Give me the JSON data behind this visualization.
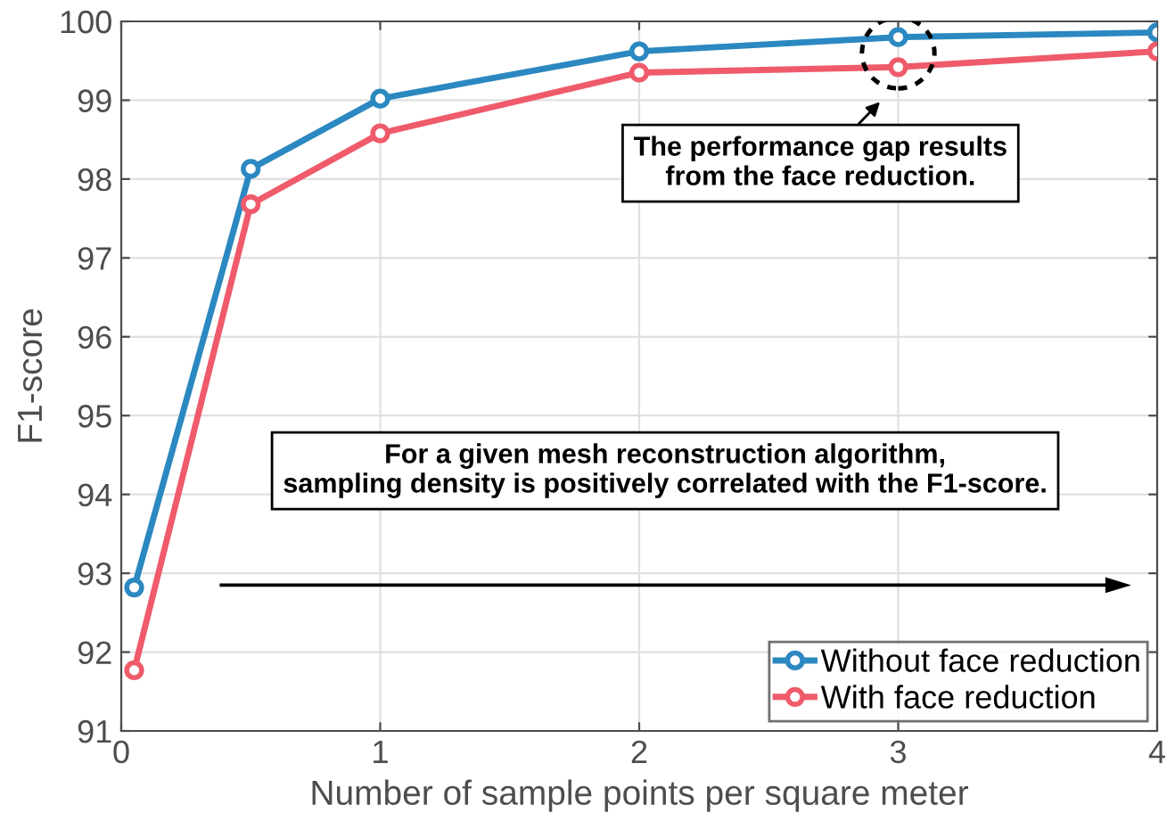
{
  "chart_data": {
    "type": "line",
    "xlabel": "Number of sample points per square meter",
    "ylabel": "F1-score",
    "x": [
      0.05,
      0.5,
      1,
      2,
      3,
      4
    ],
    "series": [
      {
        "name": "Without face reduction",
        "color": "#2b88c0",
        "values": [
          92.82,
          98.13,
          99.02,
          99.62,
          99.8,
          99.86
        ]
      },
      {
        "name": "With face reduction",
        "color": "#ef5b6b",
        "values": [
          91.77,
          97.68,
          98.58,
          99.35,
          99.42,
          99.62
        ]
      }
    ],
    "xlim": [
      0,
      4
    ],
    "xticks": [
      0,
      1,
      2,
      3,
      4
    ],
    "ylim": [
      91,
      100
    ],
    "yticks": [
      91,
      92,
      93,
      94,
      95,
      96,
      97,
      98,
      99,
      100
    ],
    "grid": true,
    "legend": "bottom right",
    "marker": "circle",
    "line_style": "solid",
    "annotations": [
      "The performance gap results\nfrom the face reduction.",
      "For a given mesh reconstruction algorithm,\nsampling density is positively correlated with the F1-score."
    ]
  }
}
